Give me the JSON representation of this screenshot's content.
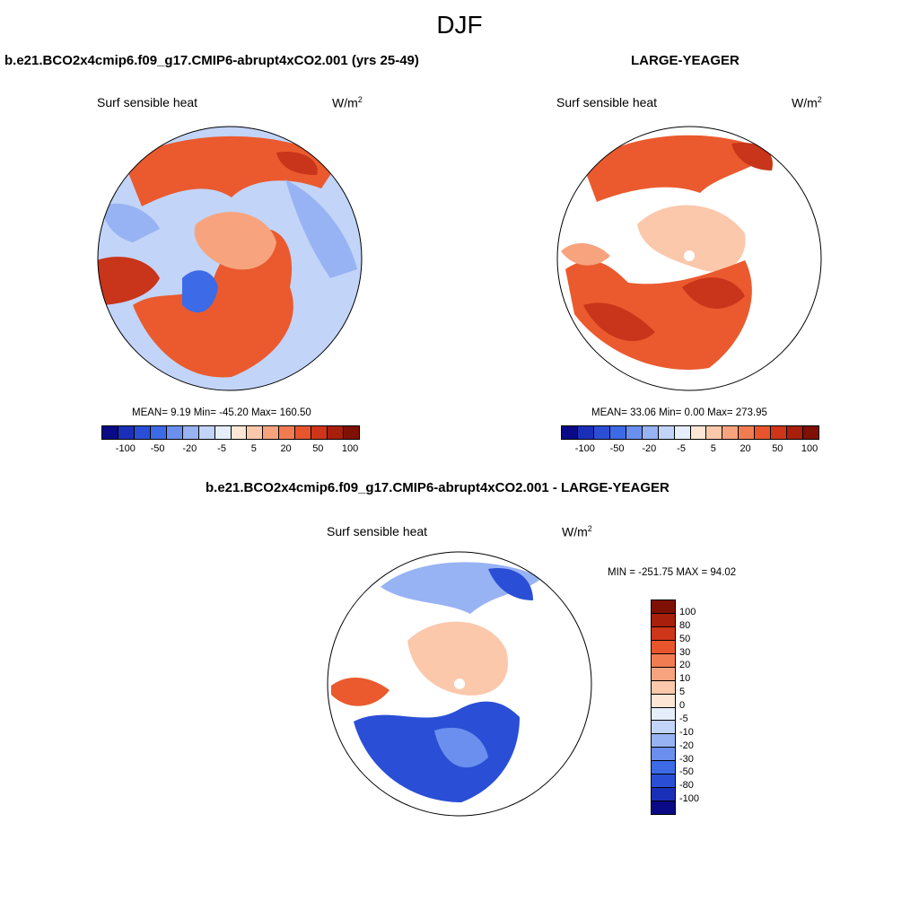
{
  "season": "DJF",
  "panels": [
    {
      "id": "case",
      "title": "b.e21.BCO2x4cmip6.f09_g17.CMIP6-abrupt4xCO2.001 (yrs 25-49)",
      "variable": "Surf sensible heat",
      "units": "W/m",
      "units_sup": "2",
      "stats_text": "MEAN=   9.19  Min= -45.20  Max= 160.50",
      "mean": 9.19,
      "min": -45.2,
      "max": 160.5
    },
    {
      "id": "reference",
      "title": "LARGE-YEAGER",
      "variable": "Surf sensible heat",
      "units": "W/m",
      "units_sup": "2",
      "stats_text": "MEAN=  33.06  Min=   0.00  Max= 273.95",
      "mean": 33.06,
      "min": 0.0,
      "max": 273.95
    },
    {
      "id": "difference",
      "title": "b.e21.BCO2x4cmip6.f09_g17.CMIP6-abrupt4xCO2.001 - LARGE-YEAGER",
      "variable": "Surf sensible heat",
      "units": "W/m",
      "units_sup": "2",
      "stats_text": "MIN = -251.75 MAX =  94.02",
      "min": -251.75,
      "max": 94.02
    }
  ],
  "horizontal_colorbar": {
    "tick_labels": [
      "-100",
      "-50",
      "-20",
      "-5",
      "5",
      "20",
      "50",
      "100"
    ],
    "colors": [
      "#0a0a86",
      "#1a2fb8",
      "#2a4fd6",
      "#3d6ae6",
      "#6a8fee",
      "#98b3f3",
      "#c2d4f8",
      "#e6eefc",
      "#fde6d6",
      "#fbc8ab",
      "#f7a47e",
      "#f27c52",
      "#e8552c",
      "#cf3518",
      "#a81f0c",
      "#7e1004"
    ]
  },
  "vertical_colorbar": {
    "tick_labels": [
      "100",
      "80",
      "50",
      "30",
      "20",
      "10",
      "5",
      "0",
      "-5",
      "-10",
      "-20",
      "-30",
      "-50",
      "-80",
      "-100"
    ],
    "colors": [
      "#7e1004",
      "#a81f0c",
      "#cf3518",
      "#e8552c",
      "#f27c52",
      "#f7a47e",
      "#fbc8ab",
      "#fde6d6",
      "#e6eefc",
      "#c2d4f8",
      "#98b3f3",
      "#6a8fee",
      "#3d6ae6",
      "#2a4fd6",
      "#1a2fb8",
      "#0a0a86"
    ]
  },
  "map_colors": {
    "ocean_white": "#ffffff",
    "red_dark": "#c8351a",
    "red": "#ea5a2e",
    "orange": "#f27c52",
    "salmon": "#f7a47e",
    "peach": "#fbc8ab",
    "cream": "#fde6d6",
    "ltblue": "#c2d4f8",
    "blue": "#98b3f3",
    "midblue": "#6a8fee",
    "dkblue": "#2a4fd6",
    "navy": "#1a2fb8"
  }
}
